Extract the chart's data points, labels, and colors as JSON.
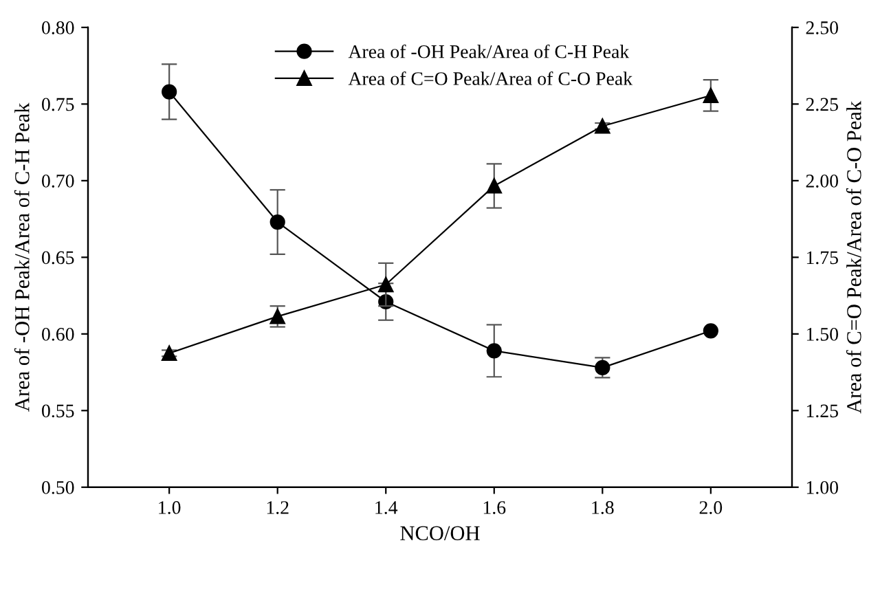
{
  "chart_data": {
    "type": "line",
    "xlabel": "NCO/OH",
    "ylabel": "Area of -OH Peak/Area of C-H Peak",
    "y2label": "Area of C=O Peak/Area of C-O Peak",
    "x": [
      1.0,
      1.2,
      1.4,
      1.6,
      1.8,
      2.0
    ],
    "series": [
      {
        "name": "Area of -OH Peak/Area of C-H Peak",
        "color": "#000000",
        "marker": "circle",
        "values": [
          0.758,
          0.673,
          0.621,
          0.589,
          0.578,
          0.602
        ],
        "errors": [
          0.018,
          0.021,
          0.012,
          0.017,
          0.0065,
          null
        ]
      },
      {
        "name": "Area of C=O Peak/Area of C-O Peak",
        "color": "#000000",
        "marker": "triangle",
        "axis": "y2",
        "values": [
          1.437,
          1.557,
          1.661,
          1.983,
          2.178,
          2.278
        ],
        "errors": [
          0.01,
          0.034,
          0.07,
          0.072,
          0.01,
          0.051
        ]
      }
    ],
    "xlim": [
      0.85,
      2.15
    ],
    "xticks": [
      {
        "value": 1.0,
        "label": "1.0"
      },
      {
        "value": 1.2,
        "label": "1.2"
      },
      {
        "value": 1.4,
        "label": "1.4"
      },
      {
        "value": 1.6,
        "label": "1.6"
      },
      {
        "value": 1.8,
        "label": "1.8"
      },
      {
        "value": 2.0,
        "label": "2.0"
      }
    ],
    "ylim": [
      0.5,
      0.8
    ],
    "yticks": [
      {
        "value": 0.5,
        "label": "0.50"
      },
      {
        "value": 0.55,
        "label": "0.55"
      },
      {
        "value": 0.6,
        "label": "0.60"
      },
      {
        "value": 0.65,
        "label": "0.65"
      },
      {
        "value": 0.7,
        "label": "0.70"
      },
      {
        "value": 0.75,
        "label": "0.75"
      },
      {
        "value": 0.8,
        "label": "0.80"
      }
    ],
    "y2lim": [
      1.0,
      2.5
    ],
    "y2ticks": [
      {
        "value": 1.0,
        "label": "1.00"
      },
      {
        "value": 1.25,
        "label": "1.25"
      },
      {
        "value": 1.5,
        "label": "1.50"
      },
      {
        "value": 1.75,
        "label": "1.75"
      },
      {
        "value": 2.0,
        "label": "2.00"
      },
      {
        "value": 2.25,
        "label": "2.25"
      },
      {
        "value": 2.5,
        "label": "2.50"
      }
    ],
    "legend": "top",
    "grid": false,
    "line_style": "solid"
  }
}
